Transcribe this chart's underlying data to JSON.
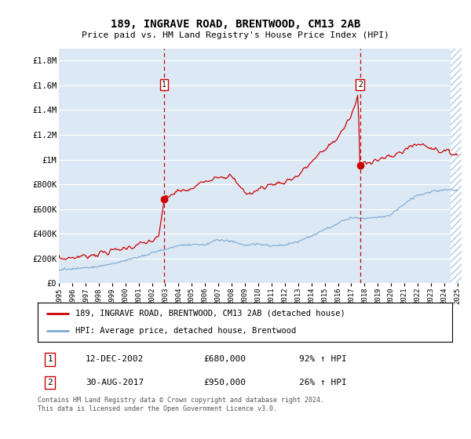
{
  "title": "189, INGRAVE ROAD, BRENTWOOD, CM13 2AB",
  "subtitle": "Price paid vs. HM Land Registry's House Price Index (HPI)",
  "legend_line1": "189, INGRAVE ROAD, BRENTWOOD, CM13 2AB (detached house)",
  "legend_line2": "HPI: Average price, detached house, Brentwood",
  "annotation1_label": "1",
  "annotation1_date": "12-DEC-2002",
  "annotation1_price": "£680,000",
  "annotation1_hpi": "92% ↑ HPI",
  "annotation1_year": 2002.92,
  "annotation1_value": 680000,
  "annotation2_label": "2",
  "annotation2_date": "30-AUG-2017",
  "annotation2_price": "£950,000",
  "annotation2_hpi": "26% ↑ HPI",
  "annotation2_year": 2017.67,
  "annotation2_value": 950000,
  "xmin": 1995,
  "xmax": 2025,
  "ymin": 0,
  "ymax": 1900000,
  "yticks": [
    0,
    200000,
    400000,
    600000,
    800000,
    1000000,
    1200000,
    1400000,
    1600000,
    1800000
  ],
  "background_color": "#dce9f5",
  "red_line_color": "#cc0000",
  "blue_line_color": "#7aa8d2",
  "vline_color": "#cc0000",
  "footnote": "Contains HM Land Registry data © Crown copyright and database right 2024.\nThis data is licensed under the Open Government Licence v3.0.",
  "xtick_years": [
    1995,
    1996,
    1997,
    1998,
    1999,
    2000,
    2001,
    2002,
    2003,
    2004,
    2005,
    2006,
    2007,
    2008,
    2009,
    2010,
    2011,
    2012,
    2013,
    2014,
    2015,
    2016,
    2017,
    2018,
    2019,
    2020,
    2021,
    2022,
    2023,
    2024,
    2025
  ]
}
